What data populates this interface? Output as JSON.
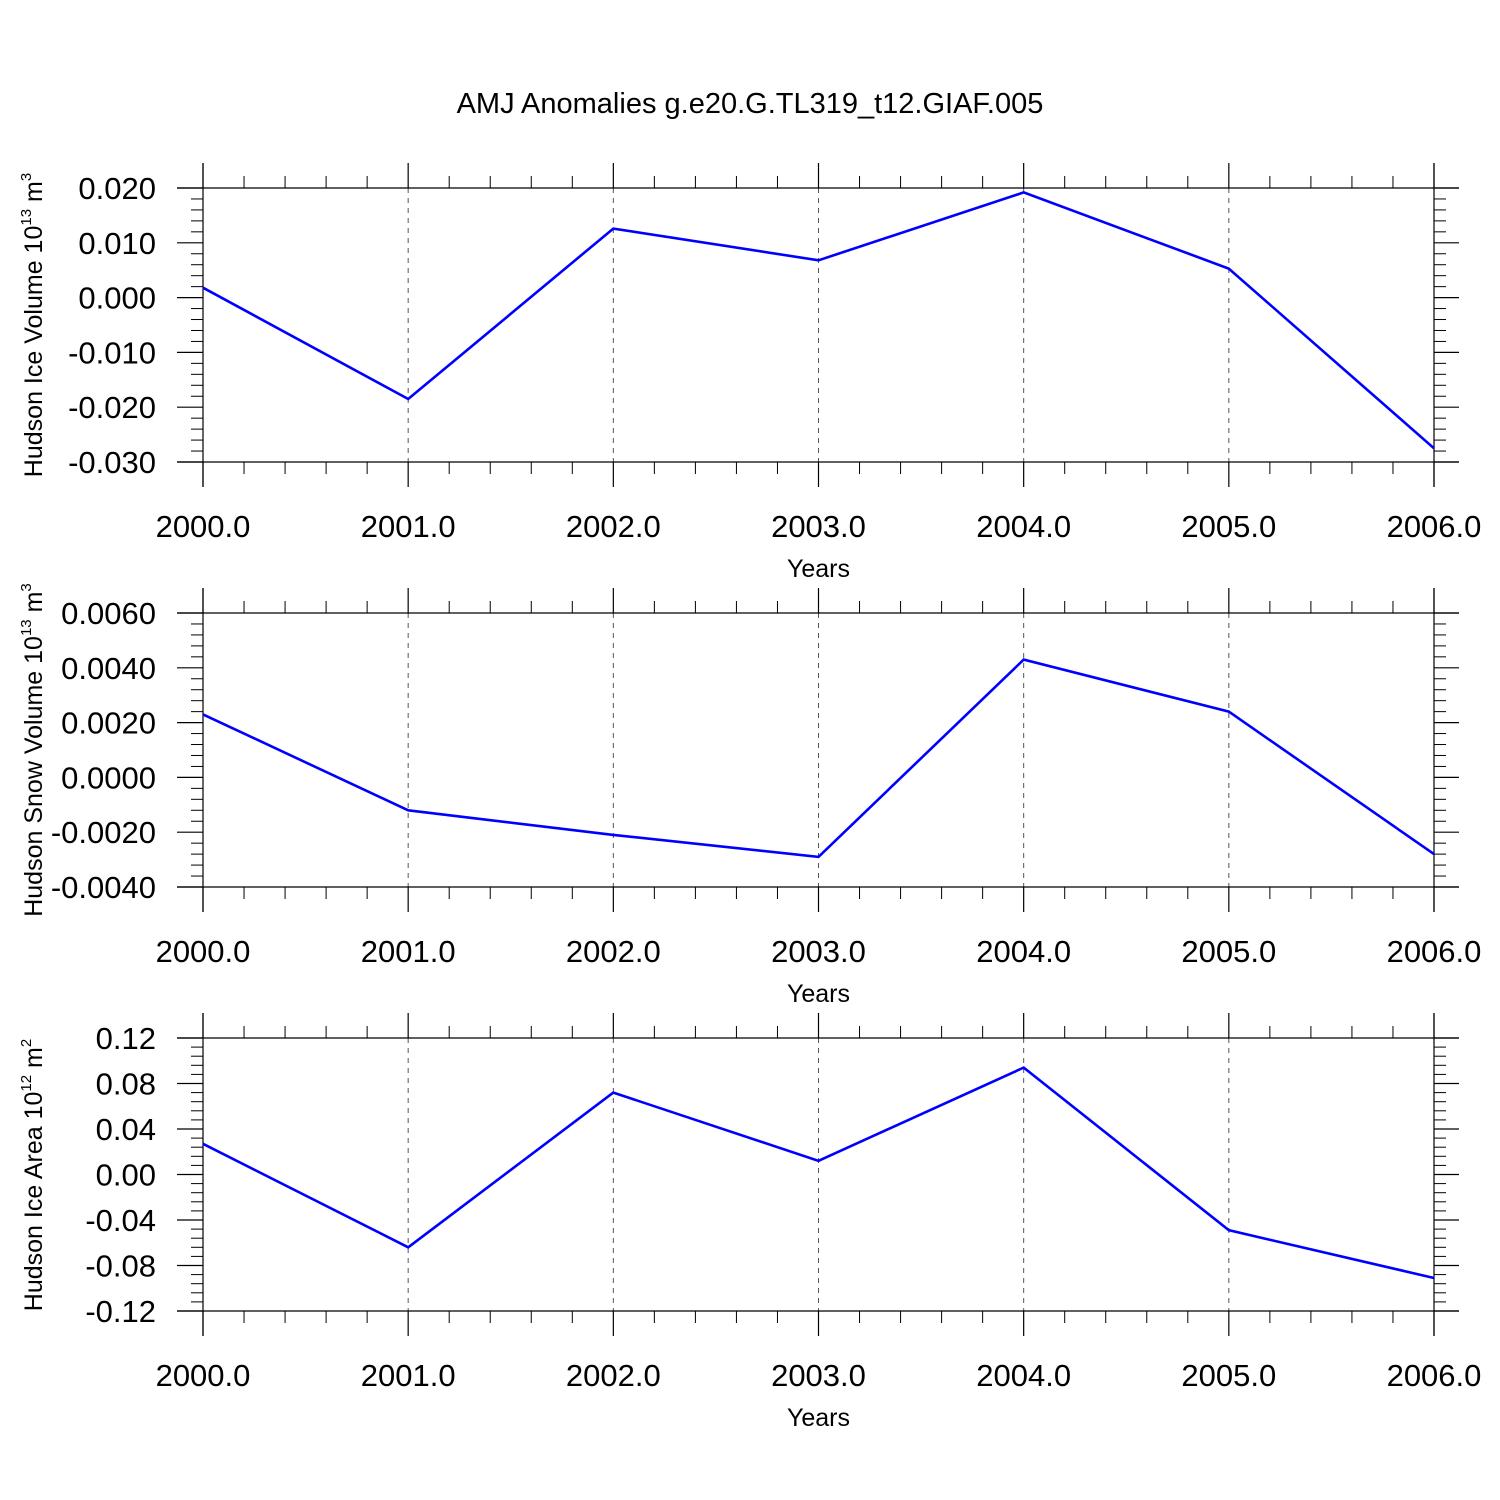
{
  "page_title": "AMJ Anomalies g.e20.G.TL319_t12.GIAF.005",
  "chart_data": [
    {
      "type": "line",
      "title": "",
      "ylabel": "Hudson Ice Volume 10",
      "ylabel_exp": "13",
      "ylabel_unit": "m",
      "ylabel_unit_exp": "3",
      "xlabel": "Years",
      "x": [
        2000,
        2001,
        2002,
        2003,
        2004,
        2005,
        2006
      ],
      "xtick_labels": [
        "2000.0",
        "2001.0",
        "2002.0",
        "2003.0",
        "2004.0",
        "2005.0",
        "2006.0"
      ],
      "ylim": [
        -0.03,
        0.02
      ],
      "ytick_values": [
        0.02,
        0.01,
        0.0,
        -0.01,
        -0.02,
        -0.03
      ],
      "ytick_labels": [
        "0.020",
        "0.010",
        "0.000",
        "-0.010",
        "-0.020",
        "-0.030"
      ],
      "series": [
        {
          "values": [
            0.0018,
            -0.0185,
            0.0126,
            0.0068,
            0.0192,
            0.0053,
            -0.0275
          ],
          "color": "#0000ff"
        }
      ],
      "grid": "vertical dashed at year ticks"
    },
    {
      "type": "line",
      "title": "",
      "ylabel": "Hudson Snow Volume 10",
      "ylabel_exp": "13",
      "ylabel_unit": "m",
      "ylabel_unit_exp": "3",
      "xlabel": "Years",
      "x": [
        2000,
        2001,
        2002,
        2003,
        2004,
        2005,
        2006
      ],
      "xtick_labels": [
        "2000.0",
        "2001.0",
        "2002.0",
        "2003.0",
        "2004.0",
        "2005.0",
        "2006.0"
      ],
      "ylim": [
        -0.004,
        0.006
      ],
      "ytick_values": [
        0.006,
        0.004,
        0.002,
        0.0,
        -0.002,
        -0.004
      ],
      "ytick_labels": [
        "0.0060",
        "0.0040",
        "0.0020",
        "0.0000",
        "-0.0020",
        "-0.0040"
      ],
      "series": [
        {
          "values": [
            0.0023,
            -0.0012,
            -0.0021,
            -0.0029,
            0.0043,
            0.0024,
            -0.0028
          ],
          "color": "#0000ff"
        }
      ],
      "grid": "vertical dashed at year ticks"
    },
    {
      "type": "line",
      "title": "",
      "ylabel": "Hudson Ice Area 10",
      "ylabel_exp": "12",
      "ylabel_unit": "m",
      "ylabel_unit_exp": "2",
      "xlabel": "Years",
      "x": [
        2000,
        2001,
        2002,
        2003,
        2004,
        2005,
        2006
      ],
      "xtick_labels": [
        "2000.0",
        "2001.0",
        "2002.0",
        "2003.0",
        "2004.0",
        "2005.0",
        "2006.0"
      ],
      "ylim": [
        -0.12,
        0.12
      ],
      "ytick_values": [
        0.12,
        0.08,
        0.04,
        0.0,
        -0.04,
        -0.08,
        -0.12
      ],
      "ytick_labels": [
        "0.12",
        "0.08",
        "0.04",
        "0.00",
        "-0.04",
        "-0.08",
        "-0.12"
      ],
      "series": [
        {
          "values": [
            0.027,
            -0.064,
            0.072,
            0.012,
            0.094,
            -0.049,
            -0.091
          ],
          "color": "#0000ff"
        }
      ],
      "grid": "vertical dashed at year ticks"
    }
  ]
}
